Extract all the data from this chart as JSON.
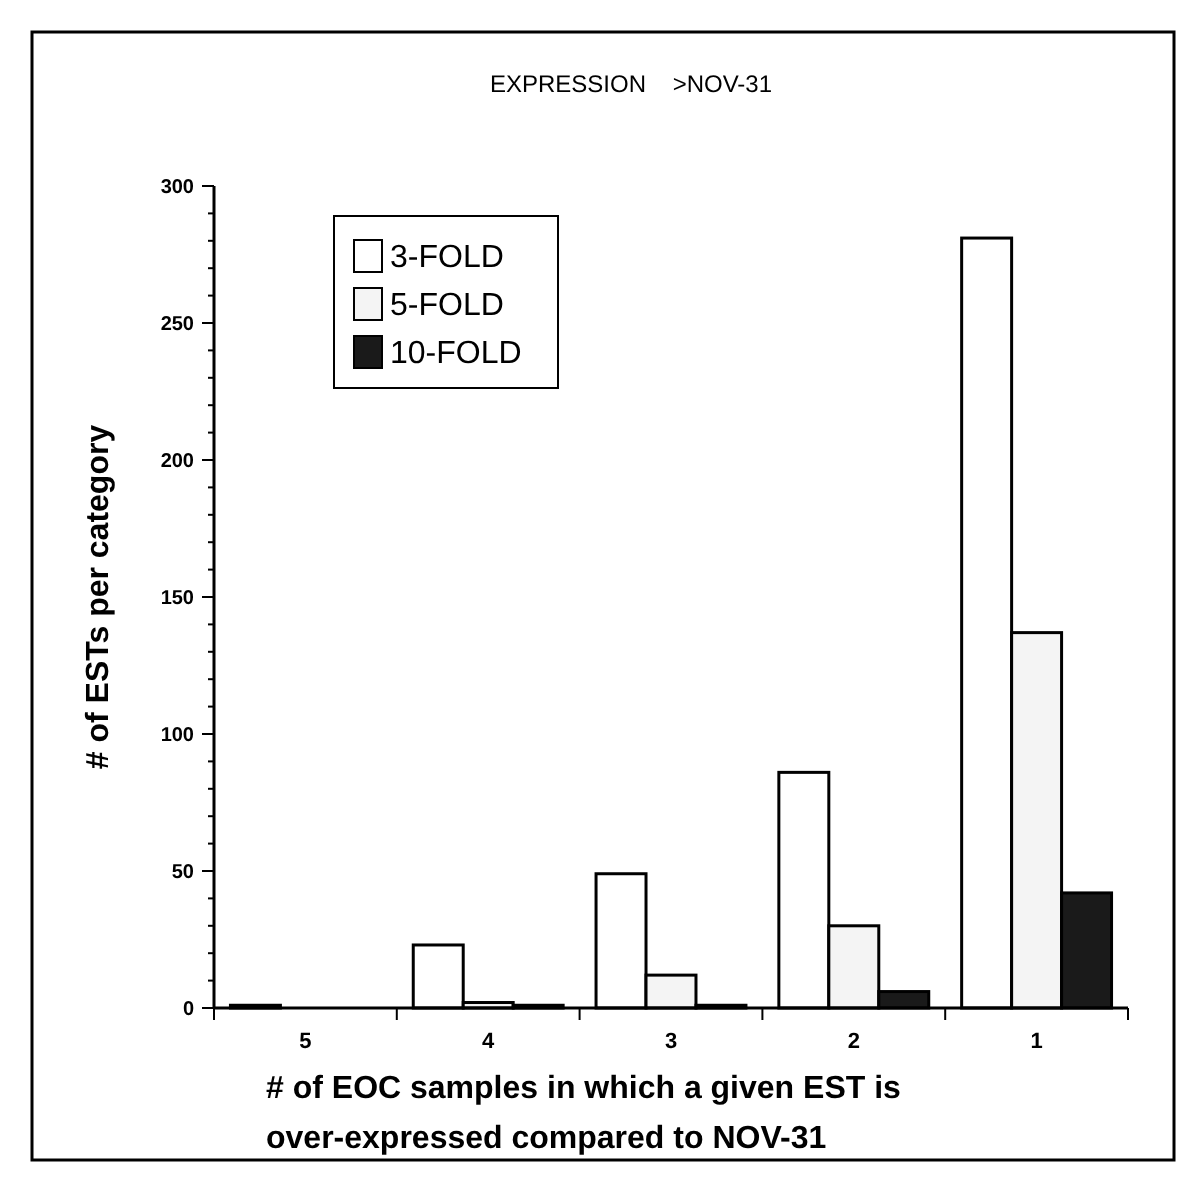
{
  "chart_data": {
    "type": "bar",
    "title": "EXPRESSION    >NOV-31",
    "xlabel": "# of EOC samples in which a given EST is\nover-expressed compared to NOV-31",
    "ylabel": "# of ESTs per category",
    "categories": [
      "5",
      "4",
      "3",
      "2",
      "1"
    ],
    "series": [
      {
        "name": "3-FOLD",
        "color": "#ffffff",
        "values": [
          1,
          23,
          49,
          86,
          281
        ]
      },
      {
        "name": "5-FOLD",
        "color": "#f4f4f4",
        "values": [
          0,
          2,
          12,
          30,
          137
        ]
      },
      {
        "name": "10-FOLD",
        "color": "#1a1a1a",
        "values": [
          0,
          1,
          1,
          6,
          42
        ]
      }
    ],
    "ylim": [
      0,
      300
    ],
    "yticks": [
      0,
      {
        "value": 10,
        "label": null
      },
      {
        "value": 20,
        "label": null
      },
      {
        "value": 30,
        "label": null
      },
      {
        "value": 40,
        "label": null
      },
      50,
      {
        "value": 60,
        "label": null
      },
      {
        "value": 70,
        "label": null
      },
      {
        "value": 80,
        "label": null
      },
      {
        "value": 90,
        "label": null
      },
      100,
      {
        "value": 110,
        "label": null
      },
      {
        "value": 120,
        "label": null
      },
      {
        "value": 130,
        "label": null
      },
      {
        "value": 140,
        "label": null
      },
      150,
      {
        "value": 160,
        "label": null
      },
      {
        "value": 170,
        "label": null
      },
      {
        "value": 180,
        "label": null
      },
      {
        "value": 190,
        "label": null
      },
      200,
      {
        "value": 210,
        "label": null
      },
      {
        "value": 220,
        "label": null
      },
      {
        "value": 230,
        "label": null
      },
      {
        "value": 240,
        "label": null
      },
      250,
      {
        "value": 260,
        "label": null
      },
      {
        "value": 270,
        "label": null
      },
      {
        "value": 280,
        "label": null
      },
      {
        "value": 290,
        "label": null
      },
      300
    ],
    "legend": "top left",
    "grid": false
  }
}
